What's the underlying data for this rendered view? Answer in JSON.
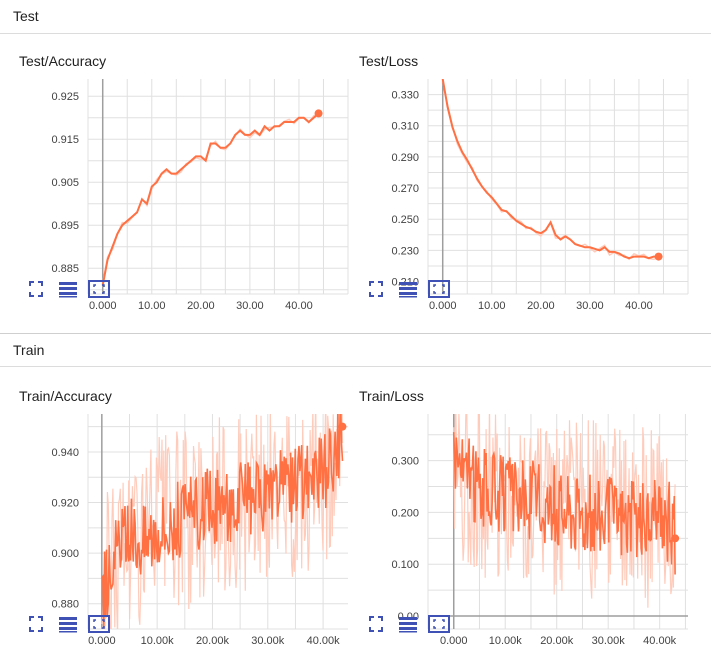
{
  "sections": [
    {
      "title": "Test"
    },
    {
      "title": "Train"
    }
  ],
  "colors": {
    "line": "#ff7043",
    "line_light": "#ffccbc",
    "grid": "#e0e0e0",
    "axis": "#9e9e9e",
    "icon": "#3f51b5"
  },
  "toolbar_icons": [
    "fullscreen-icon",
    "data-table-icon",
    "fit-domain-icon"
  ],
  "chart_data": [
    {
      "type": "line",
      "title": "Test/Accuracy",
      "x_ticks": [
        "0.000",
        "10.00",
        "20.00",
        "30.00",
        "40.00"
      ],
      "y_ticks": [
        "0.925",
        "0.915",
        "0.905",
        "0.895",
        "0.885"
      ],
      "xlim": [
        -3,
        50
      ],
      "ylim": [
        0.879,
        0.929
      ],
      "series": [
        {
          "x": [
            0,
            1,
            2,
            3,
            4,
            5,
            6,
            7,
            8,
            9,
            10,
            11,
            12,
            13,
            14,
            15,
            16,
            17,
            18,
            19,
            20,
            21,
            22,
            23,
            24,
            25,
            26,
            27,
            28,
            29,
            30,
            31,
            32,
            33,
            34,
            35,
            36,
            37,
            38,
            39,
            40,
            41,
            42,
            43,
            44
          ],
          "y": [
            0.881,
            0.887,
            0.89,
            0.893,
            0.895,
            0.896,
            0.897,
            0.898,
            0.901,
            0.9,
            0.904,
            0.905,
            0.907,
            0.908,
            0.907,
            0.907,
            0.908,
            0.909,
            0.91,
            0.911,
            0.911,
            0.91,
            0.914,
            0.914,
            0.913,
            0.913,
            0.914,
            0.916,
            0.917,
            0.916,
            0.916,
            0.917,
            0.916,
            0.918,
            0.917,
            0.918,
            0.918,
            0.919,
            0.919,
            0.919,
            0.92,
            0.92,
            0.919,
            0.92,
            0.921
          ]
        }
      ]
    },
    {
      "type": "line",
      "title": "Test/Loss",
      "x_ticks": [
        "0.000",
        "10.00",
        "20.00",
        "30.00",
        "40.00"
      ],
      "y_ticks": [
        "0.330",
        "0.310",
        "0.290",
        "0.270",
        "0.250",
        "0.230",
        "0.210"
      ],
      "xlim": [
        -3,
        50
      ],
      "ylim": [
        0.202,
        0.34
      ],
      "series": [
        {
          "x": [
            0,
            1,
            2,
            3,
            4,
            5,
            6,
            7,
            8,
            9,
            10,
            11,
            12,
            13,
            14,
            15,
            16,
            17,
            18,
            19,
            20,
            21,
            22,
            23,
            24,
            25,
            26,
            27,
            28,
            29,
            30,
            31,
            32,
            33,
            34,
            35,
            36,
            37,
            38,
            39,
            40,
            41,
            42,
            43,
            44
          ],
          "y": [
            0.34,
            0.322,
            0.309,
            0.3,
            0.293,
            0.288,
            0.282,
            0.276,
            0.271,
            0.267,
            0.264,
            0.26,
            0.256,
            0.255,
            0.252,
            0.249,
            0.247,
            0.245,
            0.244,
            0.242,
            0.241,
            0.243,
            0.248,
            0.24,
            0.237,
            0.239,
            0.237,
            0.234,
            0.233,
            0.232,
            0.232,
            0.231,
            0.23,
            0.232,
            0.229,
            0.229,
            0.228,
            0.226,
            0.225,
            0.226,
            0.226,
            0.226,
            0.225,
            0.226,
            0.226
          ]
        }
      ]
    },
    {
      "type": "line",
      "title": "Train/Accuracy",
      "x_ticks": [
        "0.000",
        "10.00k",
        "20.00k",
        "30.00k",
        "40.00k"
      ],
      "y_ticks": [
        "0.940",
        "0.920",
        "0.900",
        "0.880"
      ],
      "xlim": [
        -2500,
        44500
      ],
      "ylim": [
        0.87,
        0.955
      ],
      "series": [
        {
          "x": [
            0,
            2000,
            4000,
            6000,
            8000,
            10000,
            12000,
            14000,
            16000,
            18000,
            20000,
            22000,
            24000,
            26000,
            28000,
            30000,
            32000,
            34000,
            36000,
            38000,
            40000,
            42000,
            43500
          ],
          "y": [
            0.882,
            0.898,
            0.905,
            0.908,
            0.906,
            0.912,
            0.911,
            0.913,
            0.914,
            0.917,
            0.918,
            0.918,
            0.92,
            0.921,
            0.92,
            0.922,
            0.926,
            0.925,
            0.927,
            0.929,
            0.933,
            0.935,
            0.95
          ]
        }
      ]
    },
    {
      "type": "line",
      "title": "Train/Loss",
      "x_ticks": [
        "0.000",
        "10.00k",
        "20.00k",
        "30.00k",
        "40.00k"
      ],
      "y_ticks": [
        "0.300",
        "0.200",
        "0.100",
        "0.00"
      ],
      "xlim": [
        -5000,
        45500
      ],
      "ylim": [
        -0.025,
        0.39
      ],
      "series": [
        {
          "x": [
            0,
            2000,
            4000,
            6000,
            8000,
            10000,
            12000,
            14000,
            16000,
            18000,
            20000,
            22000,
            24000,
            26000,
            28000,
            30000,
            32000,
            34000,
            36000,
            38000,
            40000,
            42000,
            43000
          ],
          "y": [
            0.33,
            0.275,
            0.26,
            0.25,
            0.245,
            0.235,
            0.23,
            0.228,
            0.222,
            0.218,
            0.215,
            0.21,
            0.205,
            0.203,
            0.2,
            0.198,
            0.195,
            0.192,
            0.19,
            0.188,
            0.185,
            0.18,
            0.15
          ]
        }
      ]
    }
  ]
}
